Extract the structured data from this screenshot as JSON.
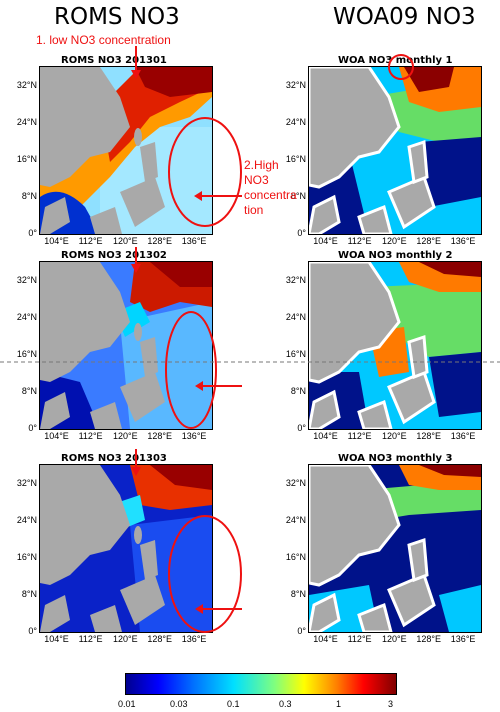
{
  "headers": {
    "left": "ROMS NO3",
    "right": "WOA09 NO3"
  },
  "panels": {
    "roms1": "ROMS NO3 201301",
    "roms2": "ROMS NO3 201302",
    "roms3": "ROMS NO3 201303",
    "woa1": "WOA NO3 monthly 1",
    "woa2": "WOA NO3 monthly 2",
    "woa3": "WOA NO3 monthly 3"
  },
  "annotations": {
    "a1": "1. low NO3 concentration",
    "a2_l1": "2.High",
    "a2_l2": "NO3",
    "a2_l3": "concentra",
    "a2_l4": "tion"
  },
  "axes": {
    "yticks": [
      "32°N",
      "24°N",
      "16°N",
      "8°N",
      "0°"
    ],
    "xticks": [
      "104°E",
      "112°E",
      "120°E",
      "128°E",
      "136°E"
    ]
  },
  "colorbar": {
    "ticks": [
      "0.01",
      "0.03",
      "0.1",
      "0.3",
      "1",
      "3"
    ],
    "scale": "log",
    "colormap": "jet",
    "range": [
      0.01,
      3
    ]
  },
  "chart_data": [
    {
      "type": "heatmap",
      "title": "ROMS NO3 201301",
      "lon_range": [
        100,
        140
      ],
      "lat_range": [
        0,
        36
      ],
      "colormap": "jet",
      "scale": "log"
    },
    {
      "type": "heatmap",
      "title": "ROMS NO3 201302",
      "lon_range": [
        100,
        140
      ],
      "lat_range": [
        0,
        36
      ],
      "colormap": "jet",
      "scale": "log"
    },
    {
      "type": "heatmap",
      "title": "ROMS NO3 201303",
      "lon_range": [
        100,
        140
      ],
      "lat_range": [
        0,
        36
      ],
      "colormap": "jet",
      "scale": "log"
    },
    {
      "type": "heatmap",
      "title": "WOA NO3 monthly 1",
      "lon_range": [
        100,
        140
      ],
      "lat_range": [
        0,
        36
      ],
      "colormap": "jet",
      "scale": "log"
    },
    {
      "type": "heatmap",
      "title": "WOA NO3 monthly 2",
      "lon_range": [
        100,
        140
      ],
      "lat_range": [
        0,
        36
      ],
      "colormap": "jet",
      "scale": "log"
    },
    {
      "type": "heatmap",
      "title": "WOA NO3 monthly 3",
      "lon_range": [
        100,
        140
      ],
      "lat_range": [
        0,
        36
      ],
      "colormap": "jet",
      "scale": "log"
    }
  ]
}
